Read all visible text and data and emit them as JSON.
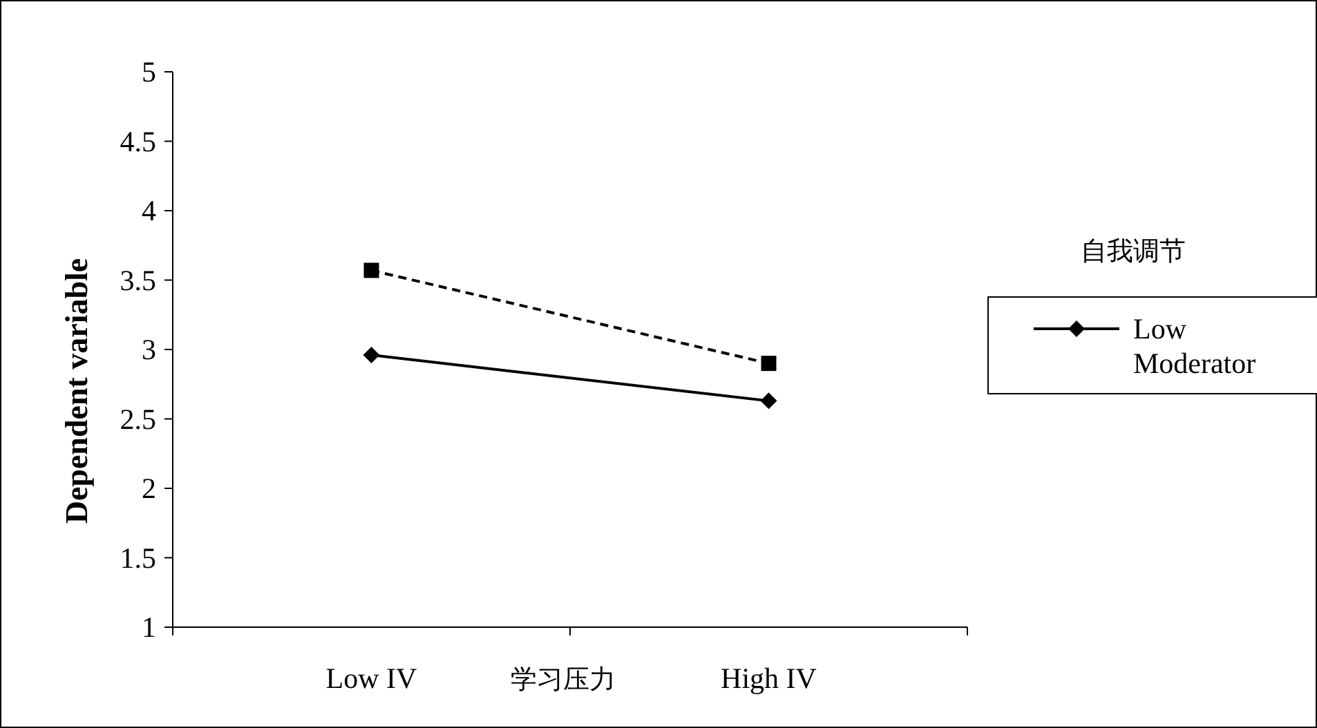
{
  "chart_data": {
    "type": "line",
    "xlabel": "学习压力",
    "ylabel": "Dependent variable",
    "legend_title": "自我调节",
    "categories": [
      "Low IV",
      "High IV"
    ],
    "series": [
      {
        "name": "Low Moderator",
        "color": "#000000",
        "values": [
          2.96,
          2.63
        ],
        "marker": "diamond",
        "line_style": "solid"
      },
      {
        "color": "#000000",
        "values": [
          3.57,
          2.9
        ],
        "marker": "square",
        "line_style": "dashed"
      }
    ],
    "ylim": [
      1,
      5
    ],
    "yticks": [
      1,
      1.5,
      2,
      2.5,
      3,
      3.5,
      4,
      4.5,
      5
    ],
    "grid": false,
    "legend": "right"
  }
}
